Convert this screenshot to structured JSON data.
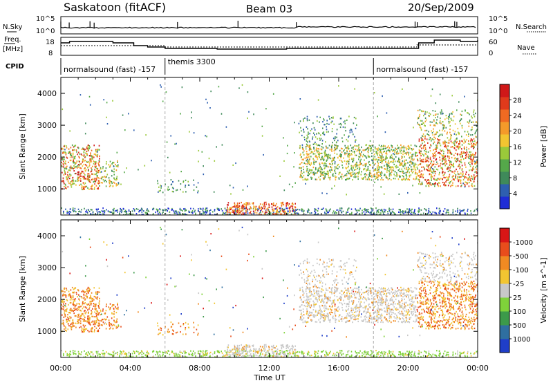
{
  "header": {
    "station": "Saskatoon (fitACF)",
    "beam": "Beam 03",
    "date": "20/Sep/2009"
  },
  "top_panels": {
    "nsky_label": "N.Sky",
    "nsky_ticks": [
      "10^5",
      "10^0"
    ],
    "nsearch_label": "N.Search",
    "nsearch_ticks": [
      "10^5",
      "10^0"
    ],
    "freq_label_1": "Freq.",
    "freq_label_2": "[MHz]",
    "freq_ticks": [
      "18",
      "8"
    ],
    "nave_label": "Nave",
    "nave_ticks": [
      "60",
      "0"
    ],
    "cpid_label": "CPID",
    "cpid_segments": [
      {
        "label": "normalsound (fast) -157",
        "start_hour": 0
      },
      {
        "label": "themis 3300",
        "start_hour": 6
      },
      {
        "label": "normalsound (fast) -157",
        "start_hour": 18
      }
    ]
  },
  "chart_data": [
    {
      "type": "heatmap",
      "panel": "power",
      "ylabel": "Slant Range [km]",
      "xlabel": "Time UT",
      "x_ticks": [
        "00:00",
        "04:00",
        "08:00",
        "12:00",
        "16:00",
        "20:00",
        "00:00"
      ],
      "x_hours": [
        0,
        4,
        8,
        12,
        16,
        20,
        24
      ],
      "y_ticks": [
        1000,
        2000,
        3000,
        4000
      ],
      "ylim": [
        180,
        4500
      ],
      "colorbar": {
        "label": "Power [dB]",
        "ticks": [
          "4",
          "8",
          "12",
          "16",
          "20",
          "24",
          "28"
        ],
        "colors": [
          "#1f2dd6",
          "#2e5fb0",
          "#3f8a5a",
          "#55a84a",
          "#9ac93a",
          "#f2c531",
          "#f49a2a",
          "#ef6a22",
          "#e03a1b",
          "#d01818"
        ]
      }
    },
    {
      "type": "heatmap",
      "panel": "velocity",
      "ylabel": "Slant Range [km]",
      "y_ticks": [
        1000,
        2000,
        3000,
        4000
      ],
      "ylim": [
        180,
        4500
      ],
      "colorbar": {
        "label": "Velocity [m s^-1]",
        "ticks": [
          "1000",
          "500",
          "100",
          "25",
          "-25",
          "-100",
          "-500",
          "-1000"
        ],
        "colors": [
          "#1f3ec8",
          "#2f6fa0",
          "#3c9a4a",
          "#7fd23a",
          "#c8c8c8",
          "#f2c531",
          "#f08a22",
          "#e84d1c",
          "#d91616"
        ]
      }
    }
  ]
}
